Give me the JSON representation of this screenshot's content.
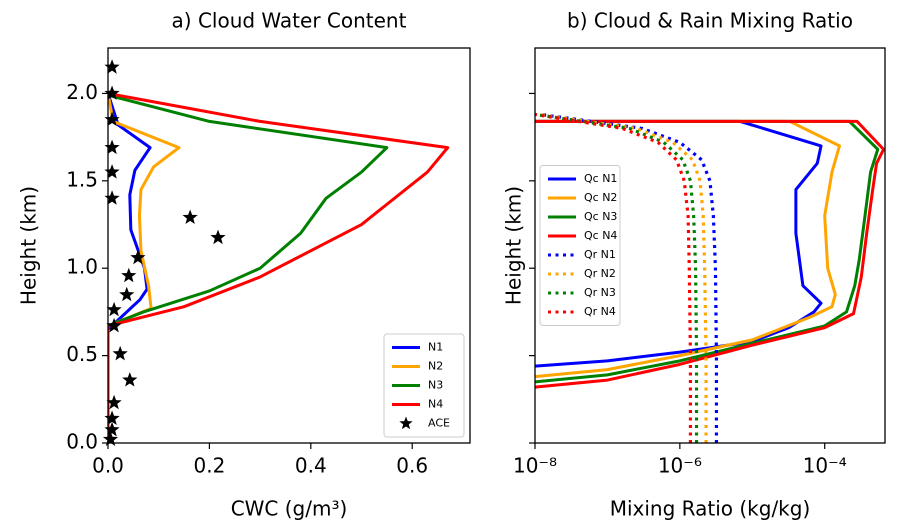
{
  "chart_data": [
    {
      "type": "line",
      "title": "a) Cloud Water Content",
      "xlabel": "CWC (g/m³)",
      "ylabel": "Height (km)",
      "xlim": [
        0,
        0.714
      ],
      "ylim": [
        0,
        2.26
      ],
      "xticks": [
        {
          "value": 0,
          "label": "0.0"
        },
        {
          "value": 0.2,
          "label": "0.2"
        },
        {
          "value": 0.4,
          "label": "0.4"
        },
        {
          "value": 0.6,
          "label": "0.6"
        }
      ],
      "yticks": [
        {
          "value": 0,
          "label": "0.0"
        },
        {
          "value": 0.5,
          "label": "0.5"
        },
        {
          "value": 1,
          "label": "1.0"
        },
        {
          "value": 1.5,
          "label": "1.5"
        },
        {
          "value": 2,
          "label": "2.0"
        }
      ],
      "legend": "lower right",
      "series": [
        {
          "name": "N1",
          "color": "#0000ff",
          "x": [
            0,
            0,
            0.063,
            0.077,
            0.072,
            0.045,
            0.043,
            0.053,
            0.083,
            0.02,
            0
          ],
          "values": [
            0,
            0.65,
            0.82,
            0.88,
            1.0,
            1.22,
            1.42,
            1.56,
            1.69,
            1.82,
            2.0
          ]
        },
        {
          "name": "N2",
          "color": "#ffa500",
          "x": [
            0,
            0,
            0.085,
            0.08,
            0.065,
            0.062,
            0.065,
            0.09,
            0.14,
            0.01,
            0
          ],
          "values": [
            0,
            0.67,
            0.77,
            0.9,
            1.1,
            1.3,
            1.45,
            1.58,
            1.69,
            1.84,
            2.0
          ]
        },
        {
          "name": "N3",
          "color": "#008000",
          "x": [
            0,
            0,
            0.07,
            0.2,
            0.3,
            0.38,
            0.43,
            0.5,
            0.55,
            0.2,
            0
          ],
          "values": [
            0,
            0.67,
            0.75,
            0.87,
            1.0,
            1.2,
            1.4,
            1.55,
            1.69,
            1.84,
            1.99
          ]
        },
        {
          "name": "N4",
          "color": "#ff0000",
          "x": [
            0,
            0,
            0.15,
            0.3,
            0.5,
            0.63,
            0.67,
            0.3,
            0
          ],
          "values": [
            0,
            0.67,
            0.78,
            0.95,
            1.25,
            1.55,
            1.69,
            1.84,
            2.0
          ]
        },
        {
          "name": "ACE",
          "type": "scatter",
          "color": "#000000",
          "x": [
            0.008,
            0.008,
            0.008,
            0.008,
            0.008,
            0.008,
            0.162,
            0.217,
            0.059,
            0.041,
            0.037,
            0.012,
            0.012,
            0.024,
            0.043,
            0.012,
            0.008,
            0.008,
            0.005
          ],
          "values": [
            2.15,
            2.0,
            1.85,
            1.69,
            1.55,
            1.4,
            1.29,
            1.175,
            1.06,
            0.957,
            0.848,
            0.762,
            0.67,
            0.51,
            0.36,
            0.23,
            0.14,
            0.075,
            0.02
          ]
        }
      ]
    },
    {
      "type": "line",
      "title": "b) Cloud & Rain Mixing Ratio",
      "xlabel": "Mixing Ratio (kg/kg)",
      "ylabel": "Height (km)",
      "xscale": "log",
      "xlim": [
        1e-08,
        0.00068
      ],
      "ylim": [
        0,
        2.26
      ],
      "xticks": [
        {
          "value": 1e-08,
          "label": "10⁻⁸"
        },
        {
          "value": 1e-06,
          "label": "10⁻⁶"
        },
        {
          "value": 0.0001,
          "label": "10⁻⁴"
        }
      ],
      "yticks": [
        0,
        0.5,
        1,
        1.5,
        2
      ],
      "ytick_labels": false,
      "legend": "center left",
      "series": [
        {
          "name": "Qc N1",
          "color": "#0000ff",
          "x": [
            1e-08,
            1e-07,
            1e-06,
            1e-05,
            3.2e-05,
            7.1e-05,
            8.9e-05,
            5e-05,
            4e-05,
            4e-05,
            7.9e-05,
            8.9e-05,
            6.8e-06,
            1e-08
          ],
          "values": [
            0.44,
            0.47,
            0.52,
            0.58,
            0.66,
            0.75,
            0.8,
            0.9,
            1.2,
            1.45,
            1.6,
            1.7,
            1.84,
            1.84
          ]
        },
        {
          "name": "Qc N2",
          "color": "#ffa500",
          "x": [
            1e-08,
            1e-07,
            1e-06,
            1e-05,
            6.3e-05,
            0.000126,
            0.00014,
            0.00011,
            0.0001,
            0.000126,
            0.00016,
            3.3e-05,
            1e-08
          ],
          "values": [
            0.38,
            0.42,
            0.5,
            0.59,
            0.72,
            0.78,
            0.85,
            1.0,
            1.3,
            1.55,
            1.7,
            1.84,
            1.84
          ]
        },
        {
          "name": "Qc N3",
          "color": "#008000",
          "x": [
            1e-08,
            1e-07,
            1e-06,
            1e-05,
            0.0001,
            0.0002,
            0.00026,
            0.0003,
            0.00036,
            0.00043,
            0.00054,
            0.00022,
            1e-08
          ],
          "values": [
            0.35,
            0.39,
            0.47,
            0.57,
            0.67,
            0.75,
            0.9,
            1.05,
            1.3,
            1.55,
            1.68,
            1.84,
            1.84
          ]
        },
        {
          "name": "Qc N4",
          "color": "#ff0000",
          "x": [
            1e-08,
            1e-07,
            1e-06,
            1e-05,
            0.0001,
            0.00025,
            0.00032,
            0.00038,
            0.00046,
            0.00052,
            0.00065,
            0.00028,
            1e-08
          ],
          "values": [
            0.32,
            0.36,
            0.45,
            0.56,
            0.66,
            0.74,
            0.95,
            1.2,
            1.45,
            1.6,
            1.68,
            1.84,
            1.84
          ]
        },
        {
          "name": "Qr N1",
          "color": "#0000ff",
          "dash": "dotted",
          "x": [
            3.2e-06,
            3.2e-06,
            3.1e-06,
            2.9e-06,
            2.6e-06,
            2e-06,
            1e-06,
            3e-07,
            1.2e-08
          ],
          "values": [
            0,
            0.5,
            1.0,
            1.3,
            1.5,
            1.62,
            1.72,
            1.8,
            1.88
          ]
        },
        {
          "name": "Qr N2",
          "color": "#ffa500",
          "dash": "dotted",
          "x": [
            2.3e-06,
            2.3e-06,
            2.2e-06,
            2.1e-06,
            1.9e-06,
            1.5e-06,
            8e-07,
            2.5e-07,
            1.1e-08
          ],
          "values": [
            0,
            0.5,
            1.0,
            1.3,
            1.5,
            1.62,
            1.72,
            1.8,
            1.88
          ]
        },
        {
          "name": "Qr N3",
          "color": "#008000",
          "dash": "dotted",
          "x": [
            1.7e-06,
            1.7e-06,
            1.65e-06,
            1.55e-06,
            1.4e-06,
            1.1e-06,
            6e-07,
            2e-07,
            1e-08
          ],
          "values": [
            0,
            0.5,
            1.0,
            1.3,
            1.5,
            1.62,
            1.72,
            1.8,
            1.88
          ]
        },
        {
          "name": "Qr N4",
          "color": "#ff0000",
          "dash": "dotted",
          "x": [
            1.4e-06,
            1.4e-06,
            1.35e-06,
            1.3e-06,
            1.15e-06,
            9e-07,
            5e-07,
            1.6e-07,
            1e-08
          ],
          "values": [
            0,
            0.5,
            1.0,
            1.3,
            1.5,
            1.62,
            1.72,
            1.8,
            1.88
          ]
        }
      ]
    }
  ]
}
